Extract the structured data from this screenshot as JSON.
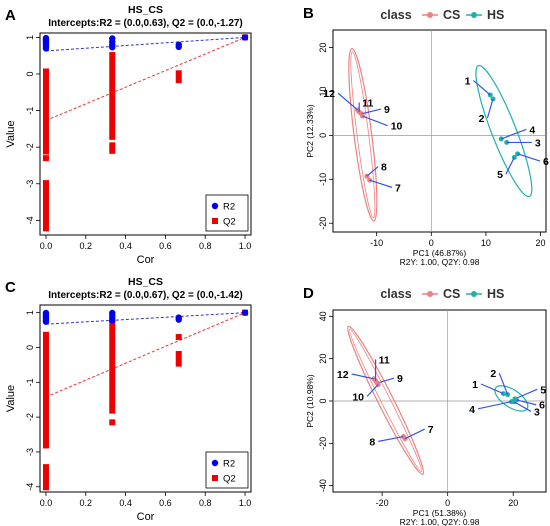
{
  "chart_data": [
    {
      "panel": "A",
      "type": "scatter",
      "title": "HS_CS",
      "subtitle": "Intercepts:R2 = (0.0,0.63), Q2 = (0.0,-1.27)",
      "xlabel": "Cor",
      "ylabel": "Value",
      "xlim": [
        -0.03,
        1.03
      ],
      "ylim": [
        -4.4,
        1.12
      ],
      "x_ticks": [
        0.0,
        0.2,
        0.4,
        0.6,
        0.8,
        1.0
      ],
      "x_tick_labels": [
        "0.0",
        "0.2",
        "0.4",
        "0.6",
        "0.8",
        "1.0"
      ],
      "y_ticks": [
        -4,
        -3,
        -2,
        -1,
        0,
        1
      ],
      "y_tick_labels": [
        "-4",
        "-3",
        "-2",
        "-1",
        "0",
        "1"
      ],
      "legend_position": "bottom-right",
      "series": [
        {
          "name": "R2",
          "marker": "circle",
          "color": "#0000ee",
          "points": [
            [
              0,
              0.98
            ],
            [
              0,
              0.94
            ],
            [
              0,
              0.9
            ],
            [
              0,
              0.86
            ],
            [
              0,
              0.82
            ],
            [
              0,
              0.78
            ],
            [
              0,
              0.74
            ],
            [
              0,
              0.7
            ],
            [
              0.333,
              0.97
            ],
            [
              0.333,
              0.88
            ],
            [
              0.333,
              0.8
            ],
            [
              0.333,
              0.73
            ],
            [
              0.667,
              0.8
            ],
            [
              0.667,
              0.74
            ],
            [
              1.0,
              1.0
            ]
          ],
          "intercept_line": {
            "x": [
              0,
              1
            ],
            "y": [
              0.63,
              1.0
            ],
            "color": "#3333cc"
          }
        },
        {
          "name": "Q2",
          "marker": "square",
          "color": "#ee0000",
          "segments": [
            [
              0,
              0.15,
              -2.2
            ],
            [
              0,
              -2.9,
              -4.3
            ],
            [
              0.333,
              0.6,
              -1.8
            ],
            [
              0.667,
              0.1,
              -0.25
            ]
          ],
          "points": [
            [
              0,
              -2.3
            ],
            [
              0.333,
              -1.95
            ],
            [
              0.333,
              -2.1
            ],
            [
              1.0,
              1.0
            ]
          ],
          "intercept_line": {
            "x": [
              0,
              1
            ],
            "y": [
              -1.27,
              1.0
            ],
            "color": "#ee3333"
          }
        }
      ]
    },
    {
      "panel": "B",
      "type": "scatter",
      "title": "class",
      "legend_items": [
        "CS",
        "HS"
      ],
      "xlabel": "PC1 (46.87%)",
      "ylabel": "PC2 (12.33%)",
      "subtitle": "R2Y: 1.00, Q2Y: 0.98",
      "xlim": [
        -18,
        21
      ],
      "ylim": [
        -22,
        24
      ],
      "x_ticks": [
        -10,
        0,
        10,
        20
      ],
      "x_tick_labels": [
        "-10",
        "0",
        "10",
        "20"
      ],
      "y_ticks": [
        -20,
        -10,
        0,
        10,
        20
      ],
      "y_tick_labels": [
        "-20",
        "-10",
        "0",
        "10",
        "20"
      ],
      "series": [
        {
          "name": "CS",
          "color": "#f08080",
          "points": [
            [
              -13.5,
              5.8
            ],
            [
              -13.2,
              5.3
            ],
            [
              -12.8,
              4.9
            ],
            [
              -12.6,
              4.4
            ],
            [
              -11.8,
              -9.3
            ],
            [
              -11.3,
              -10.2
            ]
          ],
          "labels": [
            "12",
            "11",
            "9",
            "10",
            "8",
            "7"
          ]
        },
        {
          "name": "HS",
          "color": "#20b2aa",
          "points": [
            [
              10.8,
              9.2
            ],
            [
              11.3,
              8.3
            ],
            [
              12.8,
              -0.8
            ],
            [
              13.8,
              -1.6
            ],
            [
              15.2,
              -5.0
            ],
            [
              15.8,
              -4.2
            ]
          ],
          "labels": [
            "1",
            "2",
            "4",
            "3",
            "5",
            "6"
          ]
        }
      ]
    },
    {
      "panel": "C",
      "type": "scatter",
      "title": "HS_CS",
      "subtitle": "Intercepts:R2 = (0.0,0.67), Q2 = (0.0,-1.42)",
      "xlabel": "Cor",
      "ylabel": "Value",
      "xlim": [
        -0.03,
        1.03
      ],
      "ylim": [
        -4.15,
        1.22
      ],
      "x_ticks": [
        0.0,
        0.2,
        0.4,
        0.6,
        0.8,
        1.0
      ],
      "x_tick_labels": [
        "0.0",
        "0.2",
        "0.4",
        "0.6",
        "0.8",
        "1.0"
      ],
      "y_ticks": [
        -4,
        -3,
        -2,
        -1,
        0,
        1
      ],
      "y_tick_labels": [
        "-4",
        "-3",
        "-2",
        "-1",
        "0",
        "1"
      ],
      "legend_position": "bottom-right",
      "series": [
        {
          "name": "R2",
          "marker": "circle",
          "color": "#0000ee",
          "points": [
            [
              0,
              0.99
            ],
            [
              0,
              0.95
            ],
            [
              0,
              0.9
            ],
            [
              0,
              0.86
            ],
            [
              0,
              0.82
            ],
            [
              0,
              0.78
            ],
            [
              0,
              0.74
            ],
            [
              0.333,
              0.99
            ],
            [
              0.333,
              0.92
            ],
            [
              0.333,
              0.85
            ],
            [
              0.333,
              0.78
            ],
            [
              0.667,
              0.86
            ],
            [
              0.667,
              0.8
            ],
            [
              1.0,
              1.0
            ]
          ],
          "intercept_line": {
            "x": [
              0,
              1
            ],
            "y": [
              0.67,
              1.0
            ],
            "color": "#3333cc"
          }
        },
        {
          "name": "Q2",
          "marker": "square",
          "color": "#ee0000",
          "segments": [
            [
              0,
              0.45,
              -2.9
            ],
            [
              0,
              -3.35,
              -4.1
            ],
            [
              0.333,
              0.8,
              -1.9
            ],
            [
              0.667,
              -0.1,
              -0.55
            ]
          ],
          "points": [
            [
              0.333,
              -2.15
            ],
            [
              0.667,
              0.3
            ],
            [
              1.0,
              1.0
            ]
          ],
          "intercept_line": {
            "x": [
              0,
              1
            ],
            "y": [
              -1.42,
              1.0
            ],
            "color": "#ee3333"
          }
        }
      ]
    },
    {
      "panel": "D",
      "type": "scatter",
      "title": "class",
      "legend_items": [
        "CS",
        "HS"
      ],
      "xlabel": "PC1 (51.38%)",
      "ylabel": "PC2 (10.98%)",
      "subtitle": "R2Y: 1.00, Q2Y: 0.98",
      "xlim": [
        -35,
        30
      ],
      "ylim": [
        -43,
        43
      ],
      "x_ticks": [
        -20,
        0,
        20
      ],
      "x_tick_labels": [
        "-20",
        "0",
        "20"
      ],
      "y_ticks": [
        -40,
        -20,
        0,
        20,
        40
      ],
      "y_tick_labels": [
        "-40",
        "-20",
        "0",
        "20",
        "40"
      ],
      "series": [
        {
          "name": "CS",
          "color": "#f08080",
          "points": [
            [
              -22.5,
              10.5
            ],
            [
              -22,
              9.5
            ],
            [
              -21.5,
              8.5
            ],
            [
              -21.2,
              7.8
            ],
            [
              -13.5,
              -16.8
            ],
            [
              -13,
              -17.8
            ]
          ],
          "labels": [
            "12",
            "11",
            "9",
            "10",
            "8",
            "7"
          ]
        },
        {
          "name": "HS",
          "color": "#20b2aa",
          "points": [
            [
              17,
              3.5
            ],
            [
              18.3,
              3.0
            ],
            [
              20.5,
              1.0
            ],
            [
              21,
              0.5
            ],
            [
              20.3,
              -0.4
            ],
            [
              19.5,
              -0.3
            ]
          ],
          "labels": [
            "1",
            "2",
            "5",
            "6",
            "3",
            "4"
          ]
        }
      ]
    }
  ]
}
